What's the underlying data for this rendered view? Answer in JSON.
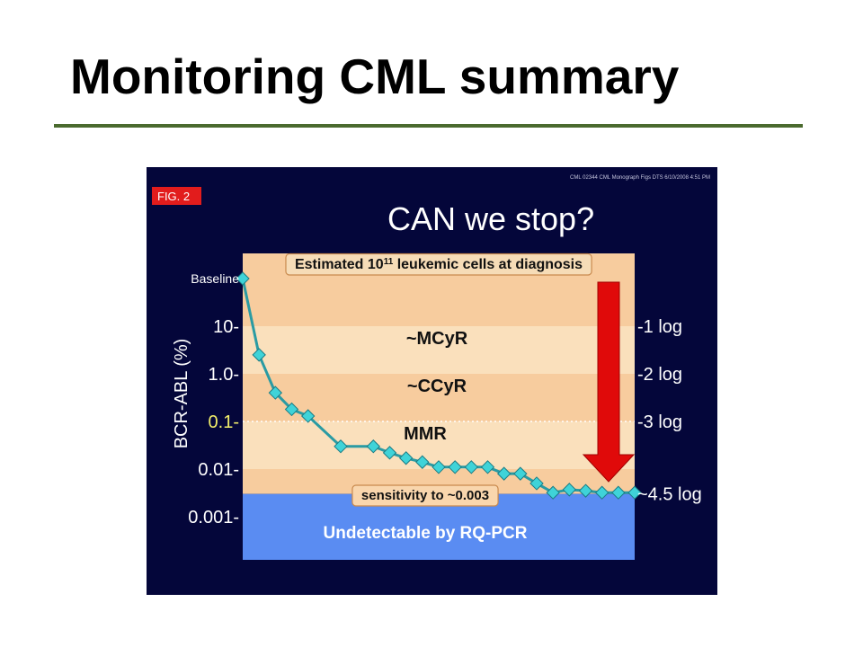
{
  "slide": {
    "title": "Monitoring CML summary"
  },
  "figure": {
    "fig_label": "FIG. 2",
    "source_note": "CML 02344 CML Monograph Figs DTS 6/10/2008 4:51 PM",
    "question": "CAN we stop?"
  },
  "colors": {
    "panel_background": "#04063a",
    "band_cream": "#fae0bc",
    "band_peach": "#f7cc9e",
    "undetectable_blue": "#5a8cf2",
    "series_line": "#2a9ba3",
    "marker": "#3fd3d8",
    "arrow": "#e00a0a",
    "fig_label_bg": "#e21c1c",
    "highlight_tick": "#f2ee6a",
    "title_rule": "#4a6a2e"
  },
  "chart_data": {
    "type": "line",
    "ylabel": "BCR-ABL (%)",
    "yscale": "log",
    "y_ticks": [
      {
        "label": "Baseline",
        "value": 100
      },
      {
        "label": "10",
        "value": 10
      },
      {
        "label": "1.0",
        "value": 1
      },
      {
        "label": "0.1",
        "value": 0.1,
        "highlight": true
      },
      {
        "label": "0.01",
        "value": 0.01
      },
      {
        "label": "0.001",
        "value": 0.001
      }
    ],
    "right_ticks": [
      {
        "label": "-1 log",
        "value": 10
      },
      {
        "label": "-2 log",
        "value": 1
      },
      {
        "label": "-3 log",
        "value": 0.1
      },
      {
        "label": "~4.5 log",
        "value": 0.003
      }
    ],
    "bands": [
      {
        "label": "Estimated 10",
        "superscript": "11",
        "suffix": " leukemic cells at diagnosis",
        "from": 10,
        "to": 100,
        "color": "band_peach",
        "boxed": true
      },
      {
        "label": "~MCyR",
        "from": 1,
        "to": 10,
        "color": "band_cream",
        "boxed": false
      },
      {
        "label": "~CCyR",
        "from": 0.1,
        "to": 1,
        "color": "band_peach",
        "boxed": false
      },
      {
        "label": "MMR",
        "from": 0.01,
        "to": 0.1,
        "color": "band_cream",
        "boxed": false
      },
      {
        "label": "sensitivity to ~0.003",
        "from": 0.003,
        "to": 0.01,
        "color": "band_peach",
        "boxed": true
      }
    ],
    "undetectable": {
      "label": "Undetectable by RQ-PCR",
      "below": 0.003
    },
    "series": [
      {
        "x": [
          0,
          1,
          2,
          3,
          4,
          6,
          8,
          9,
          10,
          11,
          12,
          13,
          14,
          15,
          16,
          17,
          18,
          19,
          20,
          21,
          22,
          23,
          24
        ],
        "y": [
          100,
          2.5,
          0.4,
          0.18,
          0.13,
          0.03,
          0.03,
          0.022,
          0.017,
          0.014,
          0.011,
          0.011,
          0.011,
          0.011,
          0.008,
          0.008,
          0.005,
          0.0032,
          0.0037,
          0.0035,
          0.0032,
          0.0032,
          0.0032
        ]
      }
    ],
    "xlim": [
      0,
      24
    ],
    "ylim": [
      0.001,
      100
    ]
  }
}
